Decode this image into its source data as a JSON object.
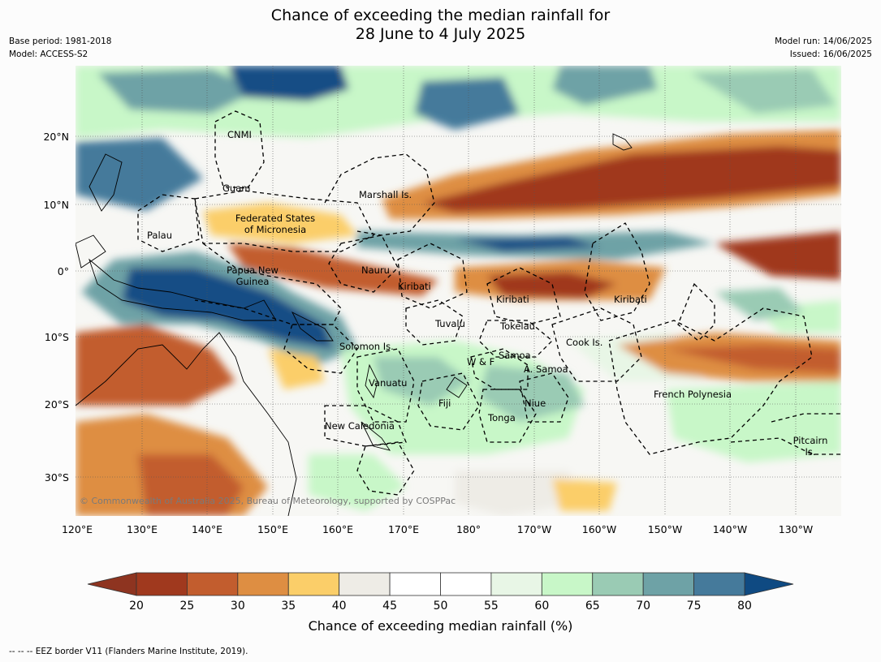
{
  "header": {
    "title_line1": "Chance of exceeding the median rainfall for",
    "title_line2": "28 June to 4 July 2025",
    "base_period": "Base period: 1981-2018",
    "model": "Model: ACCESS-S2",
    "model_run": "Model run: 14/06/2025",
    "issued": "Issued: 16/06/2025"
  },
  "map": {
    "lon_labels": [
      "120°E",
      "130°E",
      "140°E",
      "150°E",
      "160°E",
      "170°E",
      "180°",
      "170°W",
      "160°W",
      "150°W",
      "140°W",
      "130°W"
    ],
    "lat_labels": [
      "20°N",
      "10°N",
      "0°",
      "10°S",
      "20°S",
      "30°S"
    ],
    "regions": {
      "cnmi": "CNMI",
      "guam": "Guam",
      "marshall": "Marshall Is.",
      "fsm_1": "Federated States",
      "fsm_2": "of Micronesia",
      "palau": "Palau",
      "png_1": "Papua New",
      "png_2": "Guinea",
      "nauru": "Nauru",
      "kiribati_w": "Kiribati",
      "kiribati_c": "Kiribati",
      "kiribati_e": "Kiribati",
      "tuvalu": "Tuvalu",
      "tokelau": "Tokelau",
      "solomon": "Solomon Is.",
      "cook": "Cook Is.",
      "samoa": "Samoa",
      "wf": "W & F",
      "asamoa": "A. Samoa",
      "vanuatu": "Vanuatu",
      "fiji": "Fiji",
      "niue": "Niue",
      "tonga": "Tonga",
      "new_caledonia": "New Caledonia",
      "french_polynesia": "French Polynesia",
      "pitcairn_1": "Pitcairn",
      "pitcairn_2": "Is."
    },
    "credit": "© Commonwealth of Australia 2025, Bureau of Meteorology, supported by COSPPac"
  },
  "legend": {
    "ticks": [
      "20",
      "25",
      "30",
      "35",
      "40",
      "45",
      "50",
      "55",
      "60",
      "65",
      "70",
      "75",
      "80"
    ],
    "colors": [
      "#a0391e",
      "#c25d2e",
      "#de8e42",
      "#fbce69",
      "#eeece6",
      "#ffffff",
      "#ffffff",
      "#e8f6e6",
      "#c8f7c8",
      "#9acbb4",
      "#6ea2a6",
      "#457a9b",
      "#124d85"
    ],
    "below_color": "#8e3420",
    "above_color": "#0f4a82",
    "label": "Chance of exceeding median rainfall (%)"
  },
  "footnote": "--  --  -- EEZ border V11 (Flanders Marine Institute, 2019)."
}
